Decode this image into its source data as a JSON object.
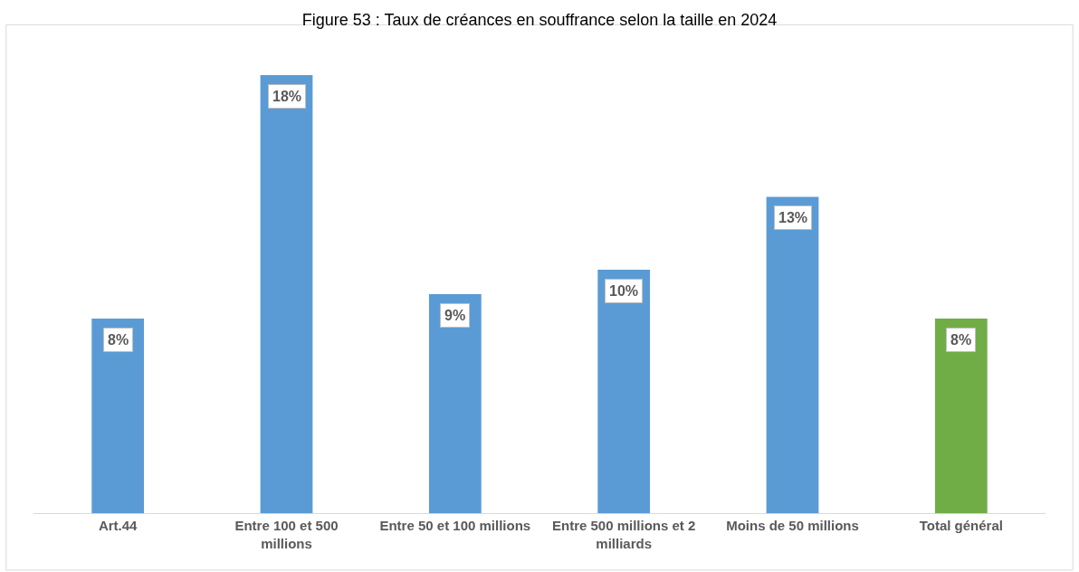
{
  "chart_data": {
    "type": "bar",
    "title": "Figure 53 : Taux de créances en souffrance selon la taille en 2024",
    "categories": [
      "Art.44",
      "Entre 100 et 500 millions",
      "Entre 50 et 100 millions",
      "Entre 500 millions et 2 milliards",
      "Moins de 50 millions",
      "Total général"
    ],
    "values": [
      8,
      18,
      9,
      10,
      13,
      8
    ],
    "colors": [
      "#5b9bd5",
      "#5b9bd5",
      "#5b9bd5",
      "#5b9bd5",
      "#5b9bd5",
      "#70ad47"
    ],
    "value_labels": [
      "8%",
      "18%",
      "9%",
      "10%",
      "13%",
      "8%"
    ],
    "ylim": [
      0,
      18
    ]
  }
}
